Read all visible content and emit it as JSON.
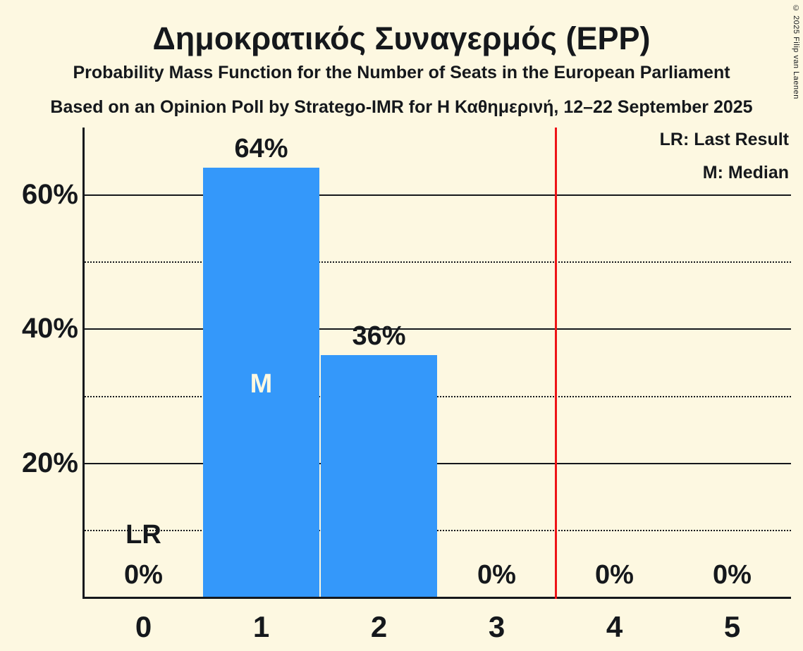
{
  "copyright": "© 2025 Filip van Laenen",
  "colors": {
    "background": "#fdf8e1",
    "bar": "#3498fa",
    "red_line": "#ee1417",
    "text": "#15181c",
    "median_label": "#fdf8e1"
  },
  "chart_data": {
    "type": "bar",
    "title": "Δημοκρατικός Συναγερμός (EPP)",
    "subtitle1": "Probability Mass Function for the Number of Seats in the European Parliament",
    "subtitle2": "Based on an Opinion Poll by Stratego-IMR for Η Καθημερινή, 12–22 September 2025",
    "xlabel": "",
    "ylabel": "",
    "categories": [
      "0",
      "1",
      "2",
      "3",
      "4",
      "5"
    ],
    "values": [
      0,
      64,
      36,
      0,
      0,
      0
    ],
    "bar_labels": [
      "0%",
      "64%",
      "36%",
      "0%",
      "0%",
      "0%"
    ],
    "median_category_index": 1,
    "median_marker": "M",
    "last_result_category_index": 0,
    "last_result_marker": "LR",
    "red_line_x": 3.5,
    "ylim": [
      0,
      70
    ],
    "yticks": [
      {
        "value": 20,
        "label": "20%"
      },
      {
        "value": 40,
        "label": "40%"
      },
      {
        "value": 60,
        "label": "60%"
      }
    ],
    "grid": {
      "solid_lines": [
        20,
        40,
        60
      ],
      "dotted_lines": [
        10,
        30,
        50
      ]
    },
    "legend": [
      "LR: Last Result",
      "M: Median"
    ],
    "legend_position": "top-right"
  }
}
